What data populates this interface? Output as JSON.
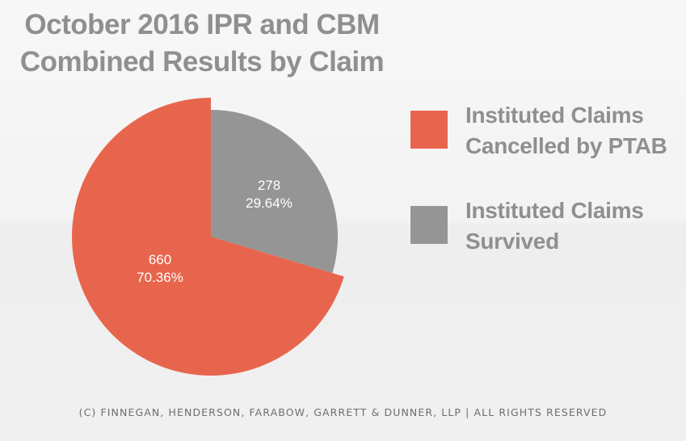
{
  "chart_data": {
    "type": "pie",
    "title_lines": [
      "October 2016 IPR and CBM",
      "Combined Results by Claim"
    ],
    "slices": [
      {
        "label": "Instituted Claims Cancelled by PTAB",
        "value": 660,
        "percent": "70.36%",
        "color": "#e8654d"
      },
      {
        "label": "Instituted Claims Survived",
        "value": 278,
        "percent": "29.64%",
        "color": "#959595"
      }
    ],
    "legend_position": "right"
  },
  "legend": [
    {
      "line1": "Instituted Claims",
      "line2": "Cancelled by PTAB"
    },
    {
      "line1": "Instituted Claims",
      "line2": "Survived"
    }
  ],
  "footer": "(C) FINNEGAN, HENDERSON, FARABOW, GARRETT & DUNNER, LLP | ALL RIGHTS RESERVED"
}
